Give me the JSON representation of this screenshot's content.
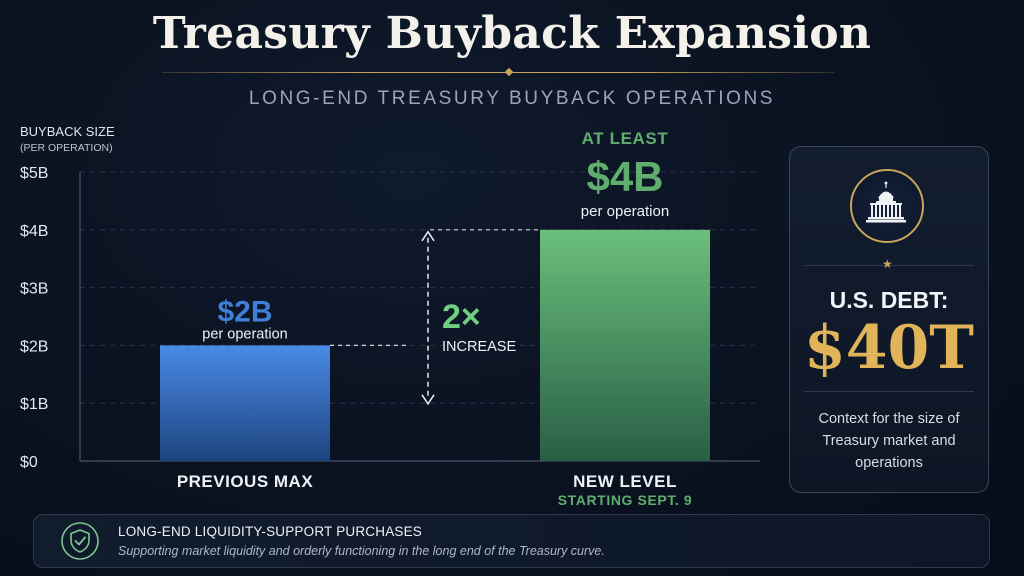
{
  "header": {
    "title": "Treasury Buyback Expansion",
    "subtitle": "LONG-END TREASURY BUYBACK OPERATIONS"
  },
  "chart_data": {
    "type": "bar",
    "ylabel": "BUYBACK SIZE",
    "ylabel_sub": "(PER OPERATION)",
    "ylim": [
      0,
      5
    ],
    "yticks": [
      0,
      1,
      2,
      3,
      4,
      5
    ],
    "ytick_labels": [
      "$0",
      "$1B",
      "$2B",
      "$3B",
      "$4B",
      "$5B"
    ],
    "grid": true,
    "bars": [
      {
        "category": "PREVIOUS MAX",
        "value": 2,
        "value_label": "$2B",
        "unit_label": "per operation",
        "prefix_label": "",
        "sub_label": "",
        "color": "#3f7fd8"
      },
      {
        "category": "NEW LEVEL",
        "value": 4,
        "value_label": "$4B",
        "unit_label": "per operation",
        "prefix_label": "AT LEAST",
        "sub_label": "STARTING SEPT. 9",
        "color": "#5fae6e"
      }
    ],
    "annotation": {
      "multiplier": "2×",
      "text": "INCREASE",
      "color": "#6fcf7f"
    }
  },
  "side_card": {
    "icon": "capitol-icon",
    "label": "U.S. DEBT:",
    "value": "$40T",
    "note": "Context for the size of Treasury market and operations",
    "accent": "#e1b45a"
  },
  "banner": {
    "icon": "shield-check-icon",
    "title": "LONG-END LIQUIDITY-SUPPORT PURCHASES",
    "text": "Supporting market liquidity and orderly functioning in the long end of the Treasury curve."
  }
}
